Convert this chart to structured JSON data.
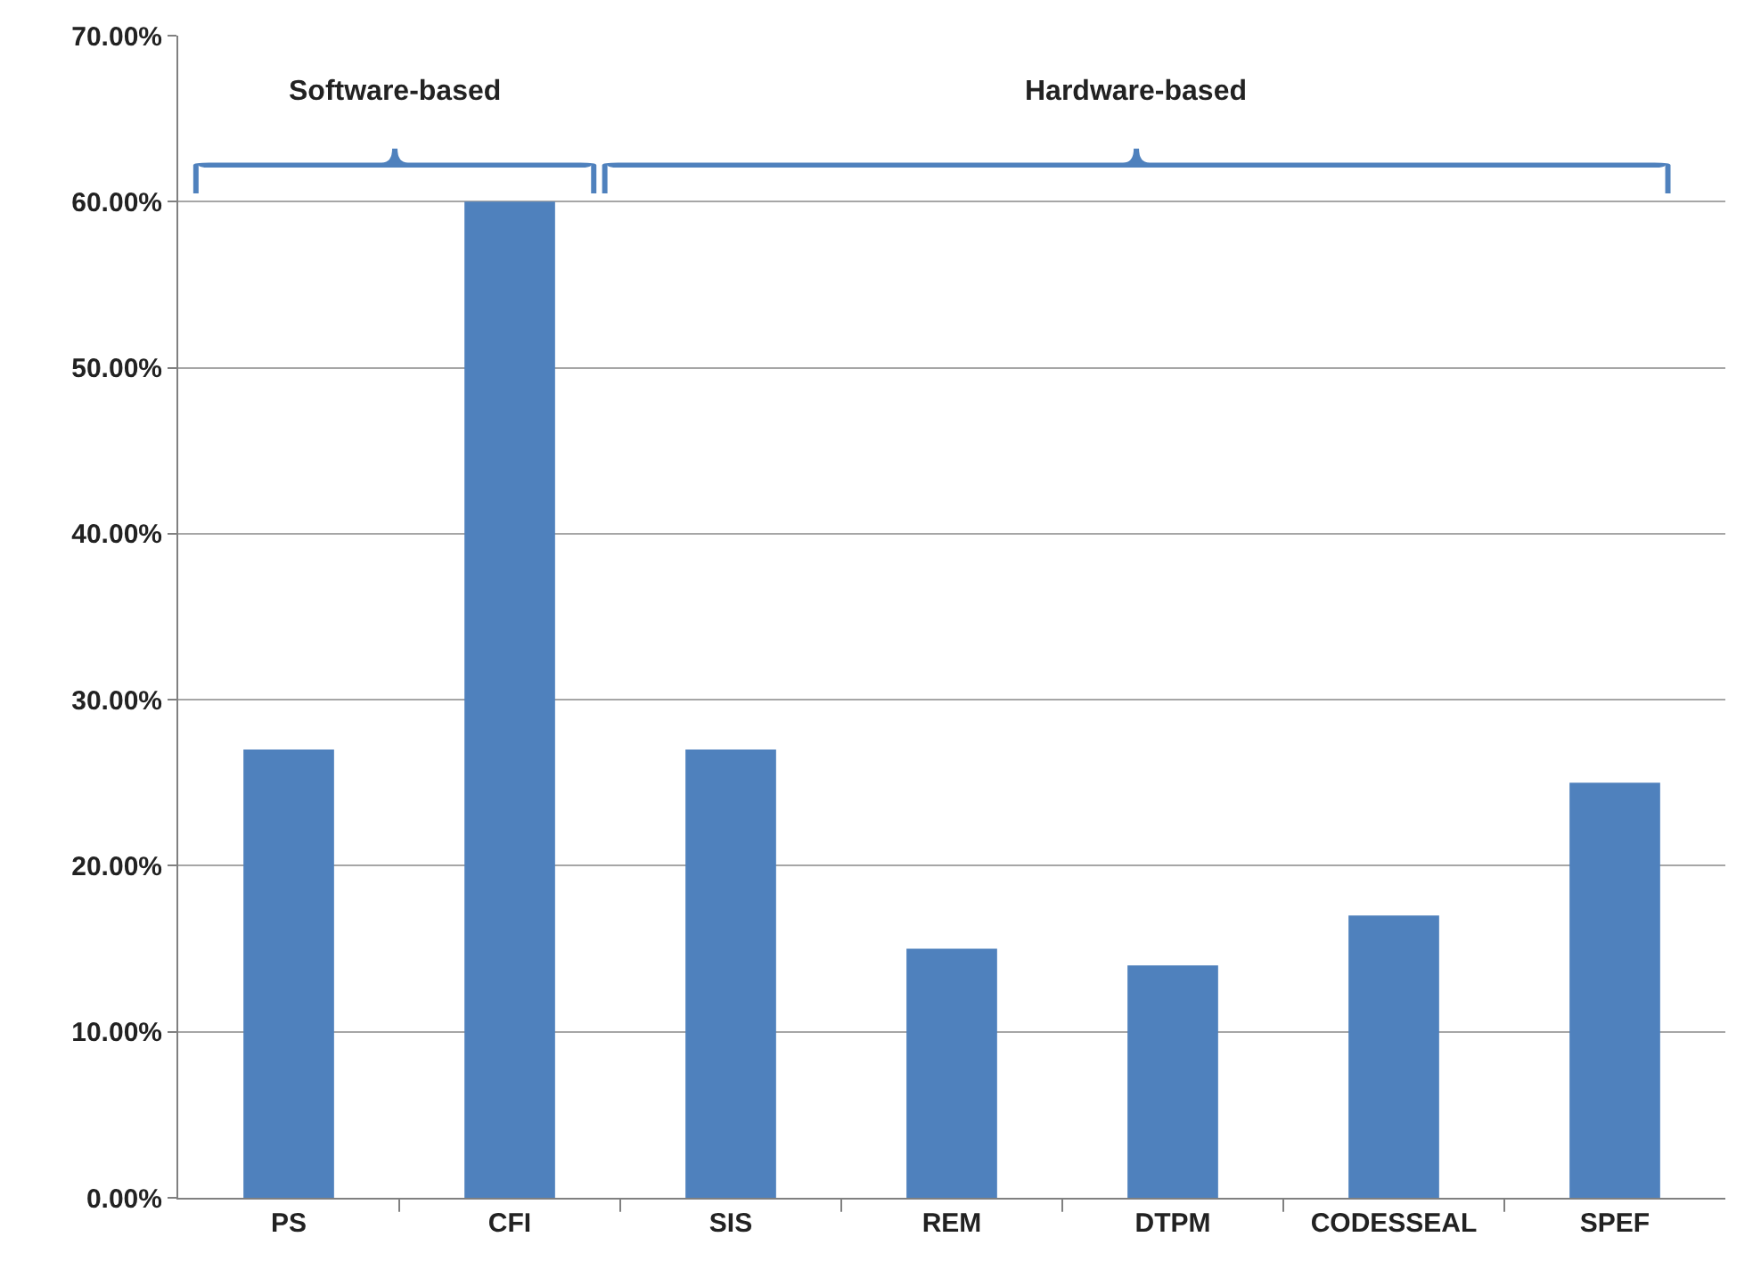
{
  "chart_data": {
    "type": "bar",
    "categories": [
      "PS",
      "CFI",
      "SIS",
      "REM",
      "DTPM",
      "CODESSEAL",
      "SPEF"
    ],
    "values": [
      27,
      60,
      27,
      15,
      14,
      17,
      25
    ],
    "color": "#4f81bd",
    "ylim": [
      0,
      70
    ],
    "yticks": [
      {
        "value": 0,
        "label": "0.00%"
      },
      {
        "value": 10,
        "label": "10.00%"
      },
      {
        "value": 20,
        "label": "20.00%"
      },
      {
        "value": 30,
        "label": "30.00%"
      },
      {
        "value": 40,
        "label": "40.00%"
      },
      {
        "value": 50,
        "label": "50.00%"
      },
      {
        "value": 60,
        "label": "60.00%"
      },
      {
        "value": 70,
        "label": "70.00%"
      }
    ],
    "grid": "y",
    "annotations": [
      "Software-based",
      "Hardware-based"
    ]
  }
}
